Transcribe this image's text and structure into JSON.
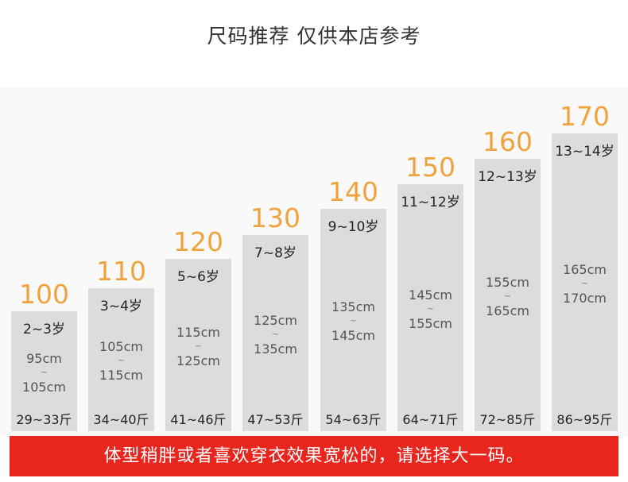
{
  "title": "尺码推荐  仅供本店参考",
  "sizes": [
    {
      "size": "100",
      "age": "2~3岁",
      "height_from": "95cm",
      "tilde": "~",
      "height_to": "105cm",
      "weight": "29~33斤"
    },
    {
      "size": "110",
      "age": "3~4岁",
      "height_from": "105cm",
      "tilde": "~",
      "height_to": "115cm",
      "weight": "34~40斤"
    },
    {
      "size": "120",
      "age": "5~6岁",
      "height_from": "115cm",
      "tilde": "~",
      "height_to": "125cm",
      "weight": "41~46斤"
    },
    {
      "size": "130",
      "age": "7~8岁",
      "height_from": "125cm",
      "tilde": "~",
      "height_to": "135cm",
      "weight": "47~53斤"
    },
    {
      "size": "140",
      "age": "9~10岁",
      "height_from": "135cm",
      "tilde": "~",
      "height_to": "145cm",
      "weight": "54~63斤"
    },
    {
      "size": "150",
      "age": "11~12岁",
      "height_from": "145cm",
      "tilde": "~",
      "height_to": "155cm",
      "weight": "64~71斤"
    },
    {
      "size": "160",
      "age": "12~13岁",
      "height_from": "155cm",
      "tilde": "~",
      "height_to": "165cm",
      "weight": "72~85斤"
    },
    {
      "size": "170",
      "age": "13~14岁",
      "height_from": "165cm",
      "tilde": "~",
      "height_to": "170cm",
      "weight": "86~95斤"
    }
  ],
  "banner": "体型稍胖或者喜欢穿衣效果宽松的，请选择大一码。",
  "colors": {
    "accent": "#f0a33d",
    "bar": "#dcdcdc",
    "banner": "#e8261e"
  }
}
